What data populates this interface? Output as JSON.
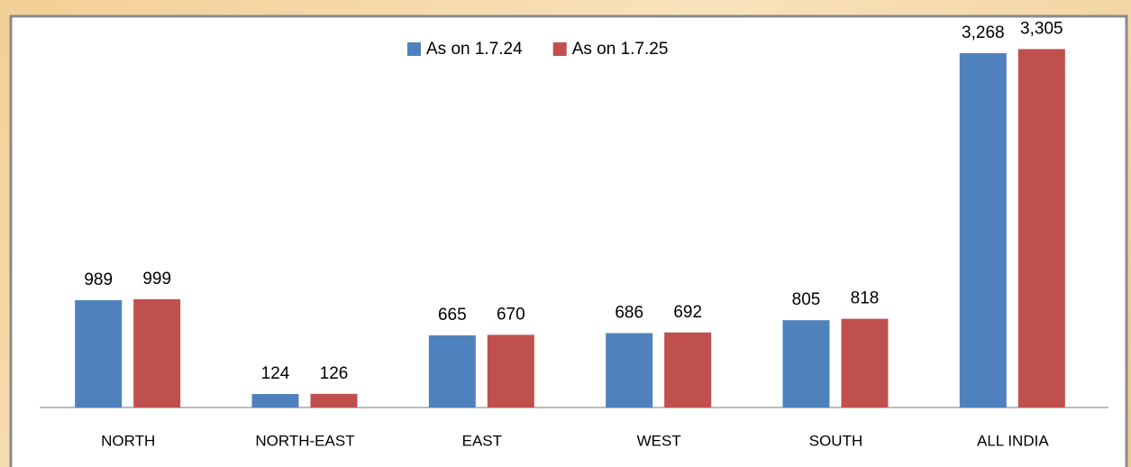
{
  "chart_data": {
    "type": "bar",
    "categories": [
      "NORTH",
      "NORTH-EAST",
      "EAST",
      "WEST",
      "SOUTH",
      "ALL INDIA"
    ],
    "series": [
      {
        "name": "As on 1.7.24",
        "color": "#4f81bd",
        "values": [
          989,
          124,
          665,
          686,
          805,
          3268
        ],
        "value_labels": [
          "989",
          "124",
          "665",
          "686",
          "805",
          "3,268"
        ]
      },
      {
        "name": "As on 1.7.25",
        "color": "#c0504d",
        "values": [
          999,
          126,
          670,
          692,
          818,
          3305
        ],
        "value_labels": [
          "999",
          "126",
          "670",
          "692",
          "818",
          "3,305"
        ]
      }
    ],
    "ylim": [
      0,
      3500
    ],
    "legend": "top"
  }
}
